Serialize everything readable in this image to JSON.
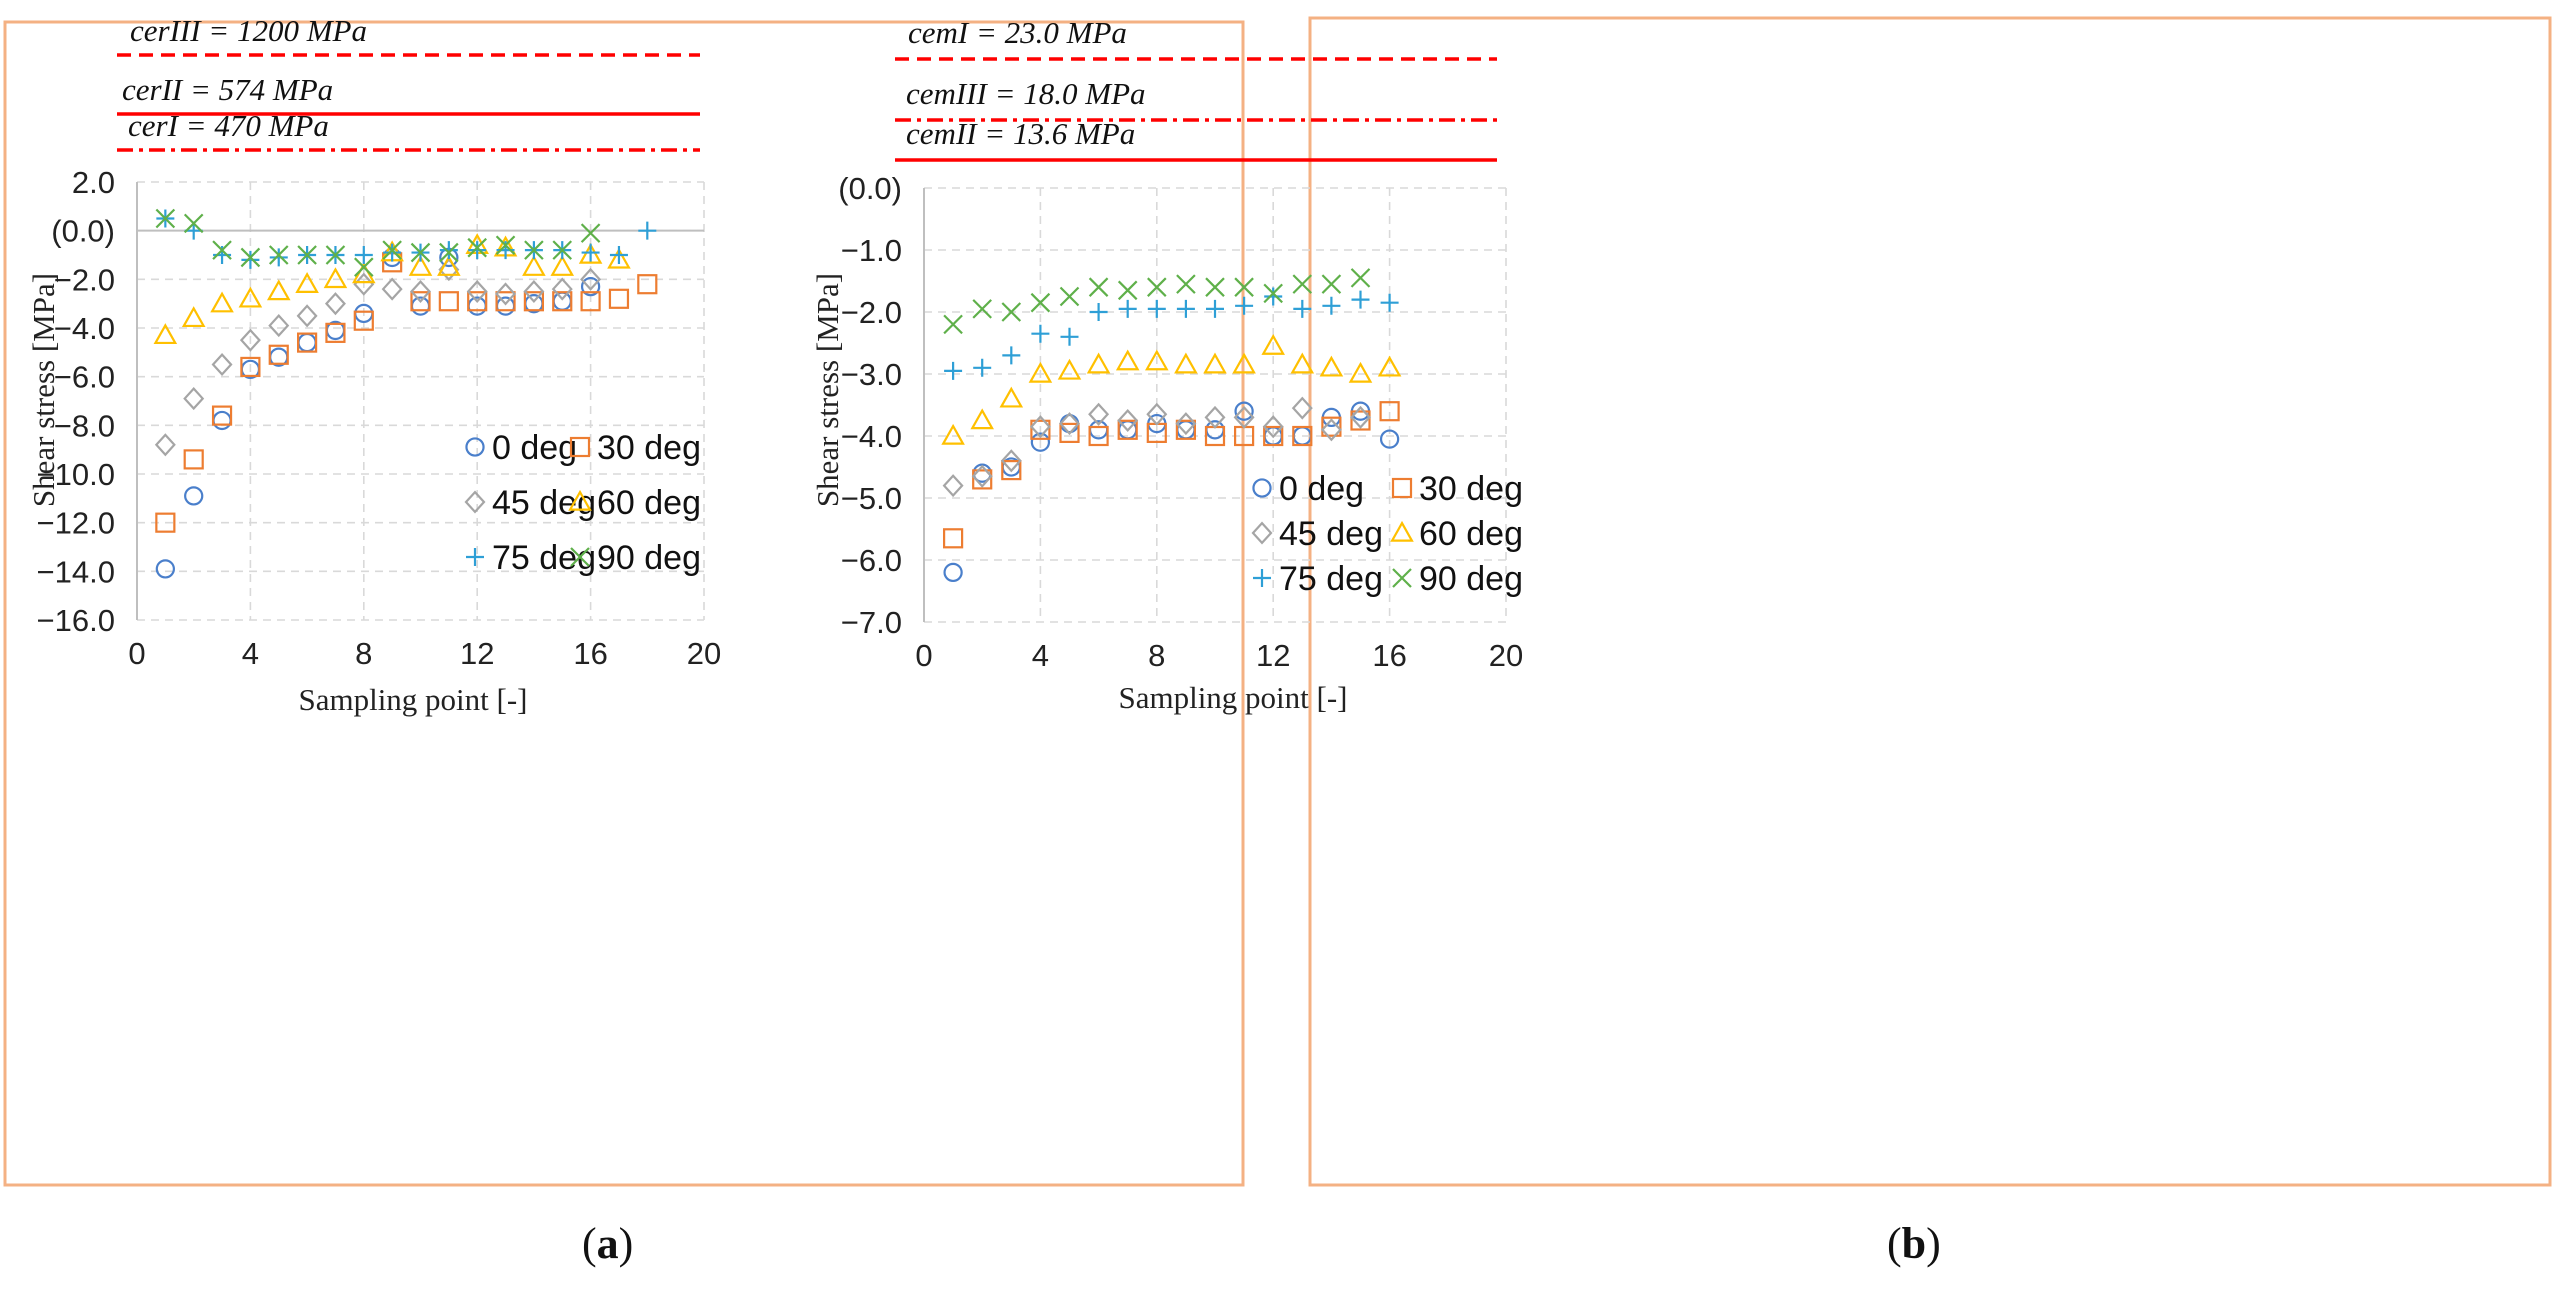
{
  "chart_data": [
    {
      "type": "scatter",
      "panel": "a",
      "xlabel": "Sampling point [-]",
      "ylabel": "Shear stress [MPa]",
      "xlim": [
        0,
        20
      ],
      "ylim": [
        -16,
        2
      ],
      "xticks": [
        0,
        4,
        8,
        12,
        16,
        20
      ],
      "yticks": [
        2,
        0,
        -2,
        -4,
        -6,
        -8,
        -10,
        -12,
        -14,
        -16
      ],
      "ytick_labels": [
        "2.0",
        "(0.0)",
        "−2.0",
        "−4.0",
        "−6.0",
        "−8.0",
        "−10.0",
        "−12.0",
        "−14.0",
        "−16.0"
      ],
      "reference_lines": [
        {
          "label": "cerIII = 1200 MPa",
          "style": "dashed"
        },
        {
          "label": "cerII = 574 MPa",
          "style": "solid"
        },
        {
          "label": "cerI = 470 MPa",
          "style": "dashdot"
        }
      ],
      "series": [
        {
          "name": "0 deg",
          "marker": "circle",
          "color": "#4a7fcb",
          "x": [
            1,
            2,
            3,
            4,
            5,
            6,
            7,
            8,
            9,
            10,
            11,
            12,
            13,
            14,
            15,
            16
          ],
          "y": [
            -13.9,
            -10.9,
            -7.8,
            -5.7,
            -5.2,
            -4.6,
            -4.1,
            -3.4,
            -1.1,
            -3.1,
            -1.1,
            -3.1,
            -3.1,
            -3.0,
            -2.9,
            -2.3
          ]
        },
        {
          "name": "30 deg",
          "marker": "square",
          "color": "#ed7d31",
          "x": [
            1,
            2,
            3,
            4,
            5,
            6,
            7,
            8,
            9,
            10,
            11,
            12,
            13,
            14,
            15,
            16,
            17,
            18
          ],
          "y": [
            -12.0,
            -9.4,
            -7.6,
            -5.6,
            -5.1,
            -4.6,
            -4.2,
            -3.7,
            -1.3,
            -2.9,
            -2.9,
            -2.9,
            -2.9,
            -2.9,
            -2.9,
            -2.9,
            -2.8,
            -2.2
          ]
        },
        {
          "name": "45 deg",
          "marker": "diamond",
          "color": "#a5a5a5",
          "x": [
            1,
            2,
            3,
            4,
            5,
            6,
            7,
            8,
            9,
            10,
            11,
            12,
            13,
            14,
            15,
            16
          ],
          "y": [
            -8.8,
            -6.9,
            -5.5,
            -4.5,
            -3.9,
            -3.5,
            -3.0,
            -2.2,
            -2.4,
            -2.5,
            -1.6,
            -2.5,
            -2.6,
            -2.5,
            -2.4,
            -2.0
          ]
        },
        {
          "name": "60 deg",
          "marker": "triangle",
          "color": "#ffc000",
          "x": [
            1,
            2,
            3,
            4,
            5,
            6,
            7,
            8,
            9,
            10,
            11,
            12,
            13,
            14,
            15,
            16,
            17
          ],
          "y": [
            -4.3,
            -3.6,
            -3.0,
            -2.8,
            -2.5,
            -2.2,
            -2.0,
            -1.8,
            -0.9,
            -1.5,
            -1.5,
            -0.6,
            -0.7,
            -1.5,
            -1.5,
            -1.0,
            -1.2
          ]
        },
        {
          "name": "75 deg",
          "marker": "plus",
          "color": "#2e9fd6",
          "x": [
            1,
            2,
            3,
            4,
            5,
            6,
            7,
            8,
            9,
            10,
            11,
            12,
            13,
            14,
            15,
            16,
            17,
            18
          ],
          "y": [
            0.5,
            0.0,
            -1.0,
            -1.2,
            -1.1,
            -1.0,
            -1.0,
            -1.0,
            -0.9,
            -0.9,
            -0.8,
            -0.8,
            -0.8,
            -0.8,
            -0.8,
            -0.9,
            -1.0,
            0.0
          ]
        },
        {
          "name": "90 deg",
          "marker": "x",
          "color": "#5fb04a",
          "x": [
            1,
            2,
            3,
            4,
            5,
            6,
            7,
            8,
            9,
            10,
            11,
            12,
            13,
            14,
            15,
            16
          ],
          "y": [
            0.5,
            0.3,
            -0.8,
            -1.1,
            -1.0,
            -1.0,
            -1.0,
            -1.5,
            -0.8,
            -0.9,
            -0.9,
            -0.7,
            -0.6,
            -0.8,
            -0.8,
            -0.1
          ]
        }
      ]
    },
    {
      "type": "scatter",
      "panel": "b",
      "xlabel": "Sampling point [-]",
      "ylabel": "Shear stress [MPa]",
      "xlim": [
        0,
        20
      ],
      "ylim": [
        -7,
        0
      ],
      "xticks": [
        0,
        4,
        8,
        12,
        16,
        20
      ],
      "yticks": [
        0,
        -1,
        -2,
        -3,
        -4,
        -5,
        -6,
        -7
      ],
      "ytick_labels": [
        "(0.0)",
        "−1.0",
        "−2.0",
        "−3.0",
        "−4.0",
        "−5.0",
        "−6.0",
        "−7.0"
      ],
      "reference_lines": [
        {
          "label": "cemI = 23.0 MPa",
          "style": "dashed"
        },
        {
          "label": "cemIII = 18.0 MPa",
          "style": "dashdot"
        },
        {
          "label": "cemII = 13.6 MPa",
          "style": "solid"
        }
      ],
      "series": [
        {
          "name": "0 deg",
          "marker": "circle",
          "color": "#4a7fcb",
          "x": [
            1,
            2,
            3,
            4,
            5,
            6,
            7,
            8,
            9,
            10,
            11,
            12,
            13,
            14,
            15,
            16
          ],
          "y": [
            -6.2,
            -4.6,
            -4.5,
            -4.1,
            -3.8,
            -3.9,
            -3.9,
            -3.8,
            -3.9,
            -3.9,
            -3.6,
            -4.0,
            -4.0,
            -3.7,
            -3.6,
            -4.05
          ]
        },
        {
          "name": "30 deg",
          "marker": "square",
          "color": "#ed7d31",
          "x": [
            1,
            2,
            3,
            4,
            5,
            6,
            7,
            8,
            9,
            10,
            11,
            12,
            13,
            14,
            15,
            16
          ],
          "y": [
            -5.65,
            -4.7,
            -4.55,
            -3.9,
            -3.95,
            -4.0,
            -3.9,
            -3.95,
            -3.9,
            -4.0,
            -4.0,
            -4.0,
            -4.0,
            -3.85,
            -3.75,
            -3.6
          ]
        },
        {
          "name": "45 deg",
          "marker": "diamond",
          "color": "#a5a5a5",
          "x": [
            1,
            2,
            3,
            4,
            5,
            6,
            7,
            8,
            9,
            10,
            11,
            12,
            13,
            14,
            15
          ],
          "y": [
            -4.8,
            -4.65,
            -4.4,
            -3.85,
            -3.8,
            -3.65,
            -3.75,
            -3.65,
            -3.8,
            -3.7,
            -3.7,
            -3.85,
            -3.55,
            -3.9,
            -3.7
          ]
        },
        {
          "name": "60 deg",
          "marker": "triangle",
          "color": "#ffc000",
          "x": [
            1,
            2,
            3,
            4,
            5,
            6,
            7,
            8,
            9,
            10,
            11,
            12,
            13,
            14,
            15,
            16
          ],
          "y": [
            -4.0,
            -3.75,
            -3.4,
            -3.0,
            -2.95,
            -2.85,
            -2.8,
            -2.8,
            -2.85,
            -2.85,
            -2.85,
            -2.55,
            -2.85,
            -2.9,
            -3.0,
            -2.9
          ]
        },
        {
          "name": "75 deg",
          "marker": "plus",
          "color": "#2e9fd6",
          "x": [
            1,
            2,
            3,
            4,
            5,
            6,
            7,
            8,
            9,
            10,
            11,
            12,
            13,
            14,
            15,
            16
          ],
          "y": [
            -2.95,
            -2.9,
            -2.7,
            -2.35,
            -2.4,
            -2.0,
            -1.95,
            -1.95,
            -1.95,
            -1.95,
            -1.9,
            -1.75,
            -1.95,
            -1.9,
            -1.8,
            -1.85
          ]
        },
        {
          "name": "90 deg",
          "marker": "x",
          "color": "#5fb04a",
          "x": [
            1,
            2,
            3,
            4,
            5,
            6,
            7,
            8,
            9,
            10,
            11,
            12,
            13,
            14,
            15
          ],
          "y": [
            -2.2,
            -1.95,
            -2.0,
            -1.85,
            -1.75,
            -1.6,
            -1.65,
            -1.6,
            -1.55,
            -1.6,
            -1.6,
            -1.7,
            -1.55,
            -1.55,
            -1.45
          ]
        }
      ]
    }
  ],
  "captions": [
    "a",
    "b"
  ],
  "colors": {
    "frame": "#f4b183",
    "grid": "#d9d9d9",
    "reference_line": "#ff0000",
    "axis": "#bfbfbf"
  }
}
